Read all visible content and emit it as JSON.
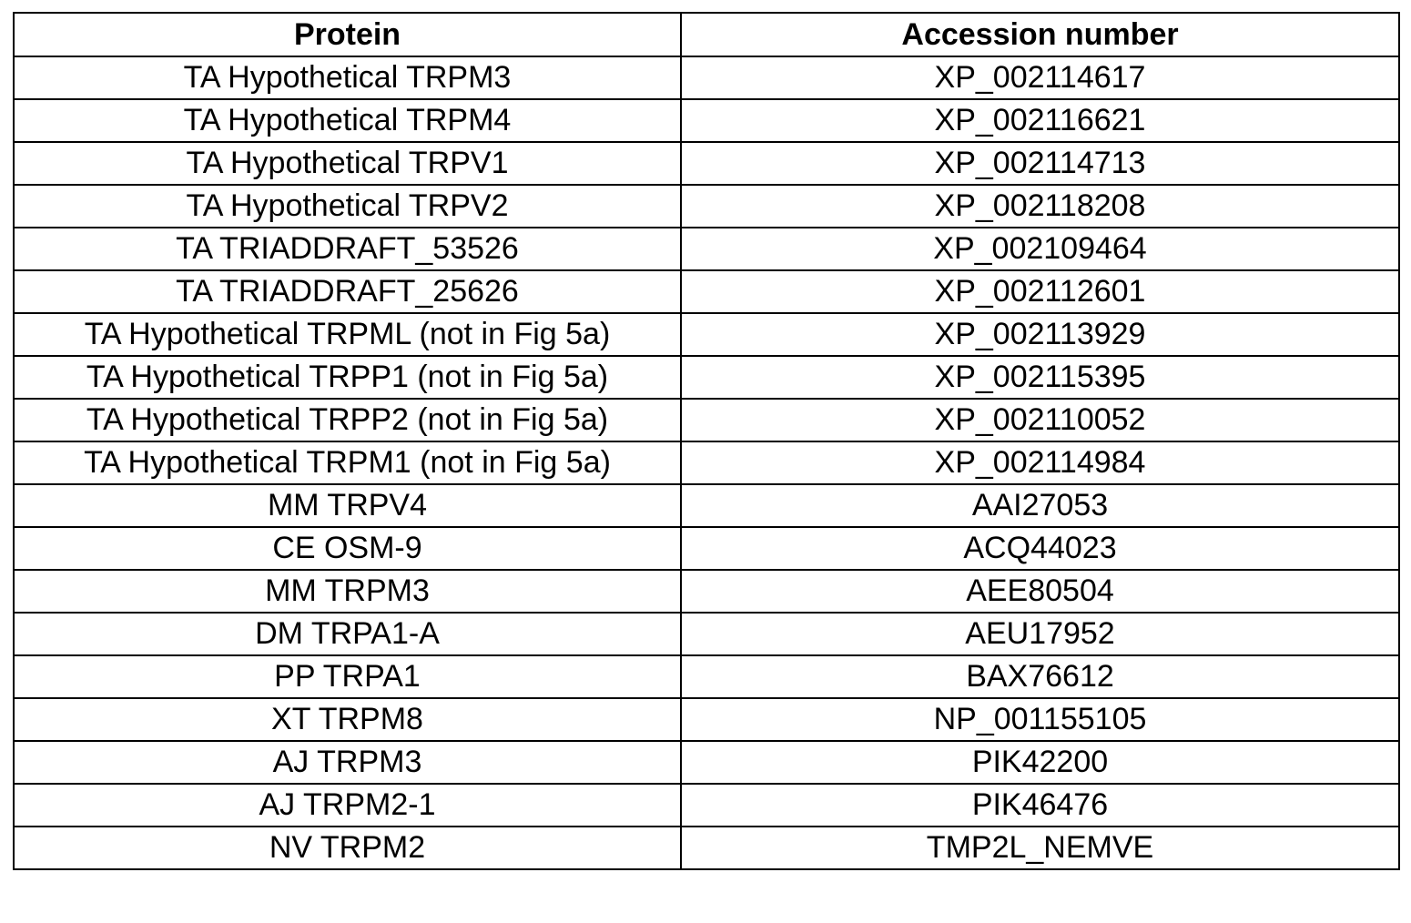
{
  "table": {
    "headers": {
      "protein": "Protein",
      "accession": "Accession number"
    },
    "rows": [
      {
        "protein": "TA Hypothetical TRPM3",
        "accession": "XP_002114617"
      },
      {
        "protein": "TA Hypothetical TRPM4",
        "accession": "XP_002116621"
      },
      {
        "protein": "TA Hypothetical TRPV1",
        "accession": "XP_002114713"
      },
      {
        "protein": "TA Hypothetical TRPV2",
        "accession": "XP_002118208"
      },
      {
        "protein": "TA TRIADDRAFT_53526",
        "accession": "XP_002109464"
      },
      {
        "protein": "TA TRIADDRAFT_25626",
        "accession": "XP_002112601"
      },
      {
        "protein": "TA Hypothetical TRPML (not in Fig 5a)",
        "accession": "XP_002113929"
      },
      {
        "protein": "TA Hypothetical TRPP1 (not in Fig 5a)",
        "accession": "XP_002115395"
      },
      {
        "protein": "TA Hypothetical TRPP2 (not in Fig 5a)",
        "accession": "XP_002110052"
      },
      {
        "protein": "TA Hypothetical TRPM1 (not in Fig 5a)",
        "accession": "XP_002114984"
      },
      {
        "protein": "MM TRPV4",
        "accession": "AAI27053"
      },
      {
        "protein": "CE OSM-9",
        "accession": "ACQ44023"
      },
      {
        "protein": "MM TRPM3",
        "accession": "AEE80504"
      },
      {
        "protein": "DM TRPA1-A",
        "accession": "AEU17952"
      },
      {
        "protein": "PP TRPA1",
        "accession": "BAX76612"
      },
      {
        "protein": "XT TRPM8",
        "accession": "NP_001155105"
      },
      {
        "protein": "AJ TRPM3",
        "accession": "PIK42200"
      },
      {
        "protein": "AJ TRPM2-1",
        "accession": "PIK46476"
      },
      {
        "protein": "NV TRPM2",
        "accession": "TMP2L_NEMVE"
      }
    ]
  }
}
